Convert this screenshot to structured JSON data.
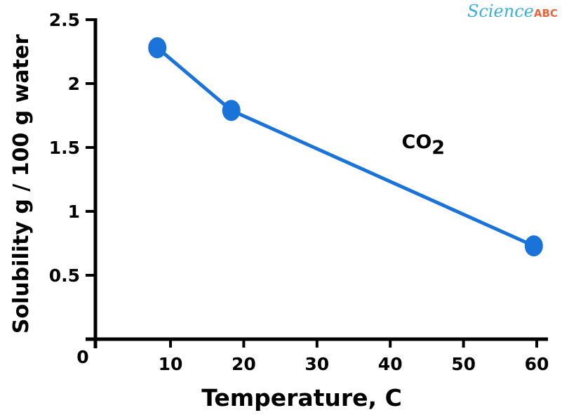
{
  "chart_data": {
    "type": "line",
    "xlabel": "Temperature, C",
    "ylabel": "Solubility g / 100 g water",
    "xlim": [
      0,
      60
    ],
    "ylim": [
      0,
      2.5
    ],
    "x_ticks": [
      "0",
      "10",
      "20",
      "30",
      "40",
      "50",
      "60"
    ],
    "y_ticks": [
      "0.5",
      "1",
      "1.5",
      "2",
      "2.5"
    ],
    "annotation": {
      "text": "CO",
      "subscript": "2",
      "x": 43,
      "y": 1.5
    },
    "series": [
      {
        "name": "CO2",
        "color": "#1a73d9",
        "x": [
          8.2,
          18.3,
          59.6
        ],
        "y": [
          2.28,
          1.79,
          0.73
        ]
      }
    ],
    "grid": false
  },
  "logo": {
    "part1": "Science",
    "part2": "ABC"
  }
}
